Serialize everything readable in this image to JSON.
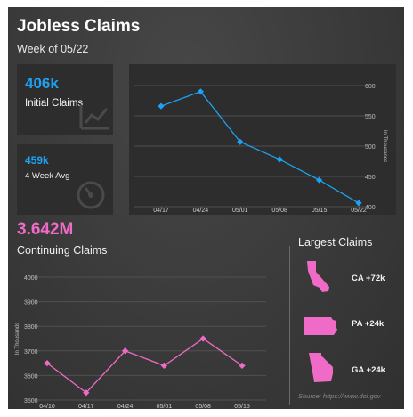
{
  "header": {
    "title": "Jobless Claims",
    "subtitle": "Week of 05/22"
  },
  "kpis": {
    "initial": {
      "value": "406k",
      "label": "Initial Claims",
      "icon": "line-chart-icon"
    },
    "avg": {
      "value": "459k",
      "label": "4 Week Avg",
      "icon": "gauge-icon"
    }
  },
  "continuing": {
    "value": "3.642M",
    "label": "Continuing Claims"
  },
  "largest": {
    "heading": "Largest Claims",
    "items": [
      {
        "state": "CA",
        "label": "CA +72k",
        "icon": "california-icon"
      },
      {
        "state": "PA",
        "label": "PA +24k",
        "icon": "pennsylvania-icon"
      },
      {
        "state": "GA",
        "label": "GA +24k",
        "icon": "georgia-icon"
      }
    ]
  },
  "source": "Source: https://www.dol.gov",
  "colors": {
    "blue": "#1ea1f2",
    "pink": "#f06bc8",
    "background": "#3a3a3a",
    "card": "#2d2d2d"
  },
  "chart_data": [
    {
      "type": "line",
      "x": [
        "04/17",
        "04/24",
        "05/01",
        "05/08",
        "05/15",
        "05/22"
      ],
      "values": [
        566,
        590,
        507,
        478,
        444,
        406
      ],
      "ylabel": "In Thousands",
      "yticks": [
        400,
        450,
        500,
        550,
        600
      ],
      "ylim": [
        400,
        600
      ],
      "y_axis_side": "right",
      "grid": true,
      "color": "#1ea1f2",
      "marker": "diamond"
    },
    {
      "type": "line",
      "x": [
        "04/10",
        "04/17",
        "04/24",
        "05/01",
        "05/08",
        "05/15"
      ],
      "values": [
        3650,
        3530,
        3700,
        3640,
        3750,
        3640
      ],
      "ylabel": "In Thousands",
      "yticks": [
        3500,
        3600,
        3700,
        3800,
        3900,
        4000
      ],
      "ylim": [
        3500,
        4000
      ],
      "y_axis_side": "left",
      "grid": true,
      "color": "#f06bc8",
      "marker": "diamond"
    }
  ]
}
